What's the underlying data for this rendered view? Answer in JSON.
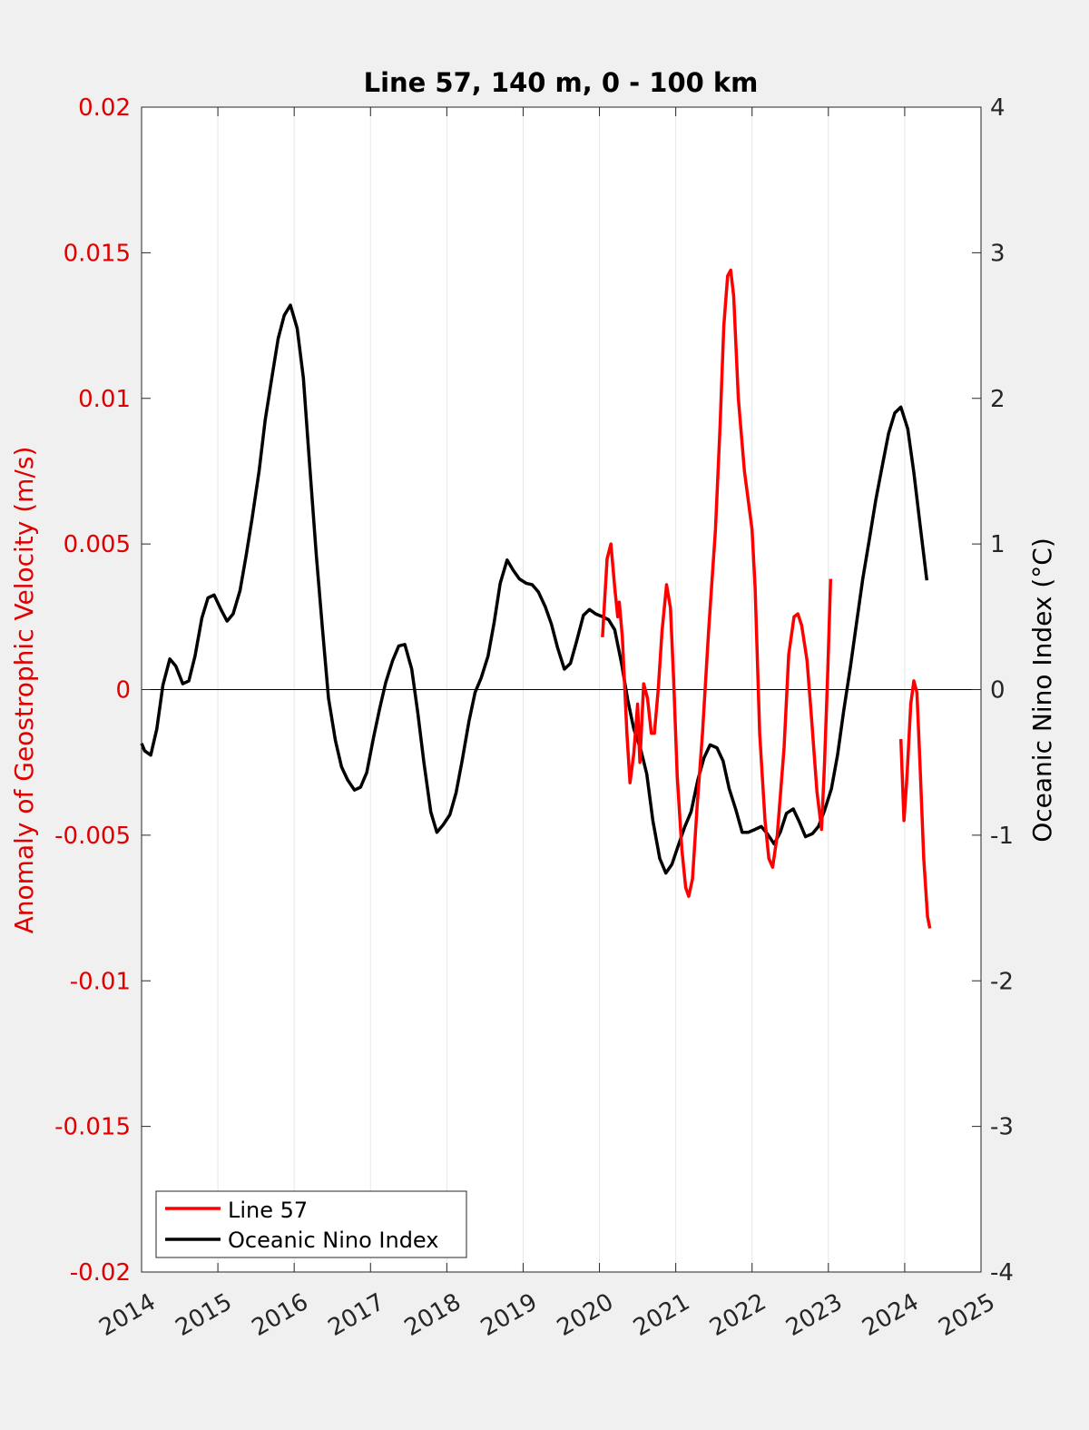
{
  "chart_data": {
    "type": "line",
    "title": "Line 57, 140 m, 0 - 100 km",
    "xlabel": "",
    "ylabel_left": "Anomaly of Geostrophic Velocity (m/s)",
    "ylabel_right": "Oceanic Nino Index (°C)",
    "xlim": [
      2014,
      2025
    ],
    "ylim_left": [
      -0.02,
      0.02
    ],
    "ylim_right": [
      -4,
      4
    ],
    "x_ticks": [
      2014,
      2015,
      2016,
      2017,
      2018,
      2019,
      2020,
      2021,
      2022,
      2023,
      2024,
      2025
    ],
    "x_tick_labels": [
      "2014",
      "2015",
      "2016",
      "2017",
      "2018",
      "2019",
      "2020",
      "2021",
      "2022",
      "2023",
      "2024",
      "2025"
    ],
    "y_left_ticks": [
      0.02,
      0.015,
      0.01,
      0.005,
      0,
      -0.005,
      -0.01,
      -0.015,
      -0.02
    ],
    "y_left_tick_labels": [
      "0.02",
      "0.015",
      "0.01",
      "0.005",
      "0",
      "-0.005",
      "-0.01",
      "-0.015",
      "-0.02"
    ],
    "y_right_ticks": [
      4,
      3,
      2,
      1,
      0,
      -1,
      -2,
      -3,
      -4
    ],
    "y_right_tick_labels": [
      "4",
      "3",
      "2",
      "1",
      "0",
      "-1",
      "-2",
      "-3",
      "-4"
    ],
    "grid": "vertical",
    "zero_line": true,
    "legend_position": "bottom-left",
    "colors": {
      "line57": "#ff0000",
      "oni": "#000000",
      "left_axis": "#e00000",
      "background": "#f0f0f0",
      "plot_bg": "#ffffff"
    },
    "series": [
      {
        "name": "Line 57",
        "axis": "left",
        "color": "#ff0000",
        "segments": [
          [
            [
              2020.04,
              0.0018
            ],
            [
              2020.1,
              0.0045
            ],
            [
              2020.15,
              0.005
            ],
            [
              2020.2,
              0.0035
            ],
            [
              2020.24,
              0.0025
            ],
            [
              2020.26,
              0.003
            ],
            [
              2020.3,
              0.0018
            ],
            [
              2020.36,
              -0.0015
            ],
            [
              2020.4,
              -0.0032
            ],
            [
              2020.45,
              -0.0022
            ],
            [
              2020.5,
              -0.0005
            ],
            [
              2020.53,
              -0.0025
            ],
            [
              2020.58,
              0.0002
            ],
            [
              2020.63,
              -0.0003
            ],
            [
              2020.68,
              -0.0015
            ],
            [
              2020.72,
              -0.0015
            ],
            [
              2020.77,
              0.0
            ],
            [
              2020.82,
              0.002
            ],
            [
              2020.88,
              0.0036
            ],
            [
              2020.93,
              0.0028
            ],
            [
              2020.97,
              0.0005
            ],
            [
              2021.02,
              -0.003
            ],
            [
              2021.08,
              -0.0055
            ],
            [
              2021.13,
              -0.0068
            ],
            [
              2021.17,
              -0.0071
            ],
            [
              2021.22,
              -0.0065
            ],
            [
              2021.28,
              -0.004
            ],
            [
              2021.35,
              -0.0015
            ],
            [
              2021.43,
              0.002
            ],
            [
              2021.52,
              0.0055
            ],
            [
              2021.58,
              0.009
            ],
            [
              2021.63,
              0.0125
            ],
            [
              2021.68,
              0.0142
            ],
            [
              2021.72,
              0.0144
            ],
            [
              2021.76,
              0.0135
            ],
            [
              2021.82,
              0.01
            ],
            [
              2021.9,
              0.0075
            ],
            [
              2022.0,
              0.0055
            ],
            [
              2022.04,
              0.0035
            ],
            [
              2022.1,
              -0.0015
            ],
            [
              2022.17,
              -0.0045
            ],
            [
              2022.22,
              -0.0058
            ],
            [
              2022.27,
              -0.0061
            ],
            [
              2022.33,
              -0.005
            ],
            [
              2022.42,
              -0.002
            ],
            [
              2022.48,
              0.0012
            ],
            [
              2022.55,
              0.0025
            ],
            [
              2022.6,
              0.0026
            ],
            [
              2022.65,
              0.0022
            ],
            [
              2022.72,
              0.001
            ],
            [
              2022.78,
              -0.001
            ],
            [
              2022.85,
              -0.0035
            ],
            [
              2022.91,
              -0.0048
            ],
            [
              2022.95,
              -0.0025
            ],
            [
              2022.99,
              0.0005
            ],
            [
              2023.03,
              0.0038
            ]
          ],
          [
            [
              2023.95,
              -0.0017
            ],
            [
              2023.99,
              -0.0045
            ],
            [
              2024.03,
              -0.003
            ],
            [
              2024.08,
              -0.0005
            ],
            [
              2024.12,
              0.0003
            ],
            [
              2024.16,
              -0.0001
            ],
            [
              2024.2,
              -0.0025
            ],
            [
              2024.25,
              -0.0058
            ],
            [
              2024.3,
              -0.0078
            ],
            [
              2024.33,
              -0.0082
            ]
          ]
        ]
      },
      {
        "name": "Oceanic Nino Index",
        "axis": "right",
        "color": "#000000",
        "points": [
          [
            2014.0,
            -0.37
          ],
          [
            2014.04,
            -0.42
          ],
          [
            2014.12,
            -0.45
          ],
          [
            2014.2,
            -0.27
          ],
          [
            2014.28,
            0.03
          ],
          [
            2014.37,
            0.21
          ],
          [
            2014.45,
            0.16
          ],
          [
            2014.54,
            0.04
          ],
          [
            2014.62,
            0.06
          ],
          [
            2014.7,
            0.23
          ],
          [
            2014.79,
            0.49
          ],
          [
            2014.87,
            0.63
          ],
          [
            2014.95,
            0.65
          ],
          [
            2015.04,
            0.55
          ],
          [
            2015.12,
            0.47
          ],
          [
            2015.2,
            0.52
          ],
          [
            2015.29,
            0.68
          ],
          [
            2015.37,
            0.92
          ],
          [
            2015.45,
            1.18
          ],
          [
            2015.54,
            1.5
          ],
          [
            2015.62,
            1.85
          ],
          [
            2015.7,
            2.12
          ],
          [
            2015.79,
            2.41
          ],
          [
            2015.87,
            2.57
          ],
          [
            2015.95,
            2.64
          ],
          [
            2016.04,
            2.48
          ],
          [
            2016.12,
            2.14
          ],
          [
            2016.2,
            1.56
          ],
          [
            2016.29,
            0.92
          ],
          [
            2016.37,
            0.42
          ],
          [
            2016.45,
            -0.06
          ],
          [
            2016.54,
            -0.35
          ],
          [
            2016.62,
            -0.53
          ],
          [
            2016.7,
            -0.62
          ],
          [
            2016.79,
            -0.69
          ],
          [
            2016.87,
            -0.67
          ],
          [
            2016.95,
            -0.57
          ],
          [
            2017.04,
            -0.33
          ],
          [
            2017.12,
            -0.13
          ],
          [
            2017.2,
            0.05
          ],
          [
            2017.29,
            0.2
          ],
          [
            2017.37,
            0.3
          ],
          [
            2017.45,
            0.31
          ],
          [
            2017.54,
            0.14
          ],
          [
            2017.62,
            -0.16
          ],
          [
            2017.7,
            -0.5
          ],
          [
            2017.79,
            -0.84
          ],
          [
            2017.87,
            -0.98
          ],
          [
            2017.95,
            -0.93
          ],
          [
            2018.04,
            -0.86
          ],
          [
            2018.12,
            -0.71
          ],
          [
            2018.2,
            -0.49
          ],
          [
            2018.29,
            -0.22
          ],
          [
            2018.37,
            -0.02
          ],
          [
            2018.45,
            0.08
          ],
          [
            2018.54,
            0.23
          ],
          [
            2018.62,
            0.46
          ],
          [
            2018.7,
            0.73
          ],
          [
            2018.79,
            0.89
          ],
          [
            2018.87,
            0.82
          ],
          [
            2018.95,
            0.76
          ],
          [
            2019.04,
            0.73
          ],
          [
            2019.12,
            0.72
          ],
          [
            2019.2,
            0.67
          ],
          [
            2019.29,
            0.57
          ],
          [
            2019.37,
            0.45
          ],
          [
            2019.45,
            0.29
          ],
          [
            2019.54,
            0.14
          ],
          [
            2019.62,
            0.18
          ],
          [
            2019.7,
            0.33
          ],
          [
            2019.79,
            0.51
          ],
          [
            2019.87,
            0.55
          ],
          [
            2019.95,
            0.52
          ],
          [
            2020.04,
            0.5
          ],
          [
            2020.12,
            0.48
          ],
          [
            2020.2,
            0.41
          ],
          [
            2020.29,
            0.18
          ],
          [
            2020.37,
            -0.07
          ],
          [
            2020.45,
            -0.27
          ],
          [
            2020.54,
            -0.41
          ],
          [
            2020.62,
            -0.58
          ],
          [
            2020.7,
            -0.9
          ],
          [
            2020.79,
            -1.16
          ],
          [
            2020.87,
            -1.26
          ],
          [
            2020.95,
            -1.2
          ],
          [
            2021.04,
            -1.06
          ],
          [
            2021.12,
            -0.94
          ],
          [
            2021.2,
            -0.84
          ],
          [
            2021.29,
            -0.62
          ],
          [
            2021.37,
            -0.47
          ],
          [
            2021.45,
            -0.38
          ],
          [
            2021.54,
            -0.4
          ],
          [
            2021.62,
            -0.49
          ],
          [
            2021.7,
            -0.68
          ],
          [
            2021.79,
            -0.83
          ],
          [
            2021.87,
            -0.98
          ],
          [
            2021.95,
            -0.98
          ],
          [
            2022.04,
            -0.96
          ],
          [
            2022.12,
            -0.94
          ],
          [
            2022.2,
            -0.99
          ],
          [
            2022.29,
            -1.06
          ],
          [
            2022.37,
            -0.98
          ],
          [
            2022.45,
            -0.85
          ],
          [
            2022.54,
            -0.82
          ],
          [
            2022.62,
            -0.91
          ],
          [
            2022.7,
            -1.01
          ],
          [
            2022.79,
            -0.99
          ],
          [
            2022.87,
            -0.94
          ],
          [
            2022.95,
            -0.83
          ],
          [
            2023.04,
            -0.68
          ],
          [
            2023.12,
            -0.45
          ],
          [
            2023.2,
            -0.15
          ],
          [
            2023.29,
            0.16
          ],
          [
            2023.37,
            0.46
          ],
          [
            2023.45,
            0.76
          ],
          [
            2023.54,
            1.04
          ],
          [
            2023.62,
            1.3
          ],
          [
            2023.7,
            1.52
          ],
          [
            2023.79,
            1.76
          ],
          [
            2023.87,
            1.9
          ],
          [
            2023.95,
            1.94
          ],
          [
            2024.04,
            1.79
          ],
          [
            2024.12,
            1.49
          ],
          [
            2024.2,
            1.14
          ],
          [
            2024.29,
            0.75
          ]
        ]
      }
    ]
  }
}
